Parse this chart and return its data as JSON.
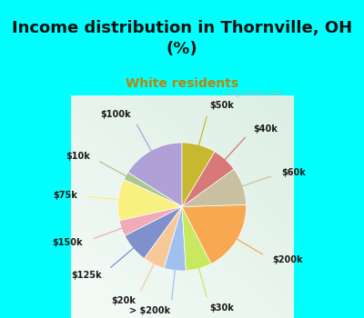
{
  "title": "Income distribution in Thornville, OH\n(%)",
  "subtitle": "White residents",
  "title_color": "#111111",
  "subtitle_color": "#b8860b",
  "background_fig": "#00ffff",
  "background_chart": "#d8f0e8",
  "labels": [
    "$100k",
    "$10k",
    "$75k",
    "$150k",
    "$125k",
    "$20k",
    "> $200k",
    "$30k",
    "$200k",
    "$60k",
    "$40k",
    "$50k"
  ],
  "values": [
    16.0,
    2.0,
    10.5,
    4.0,
    7.5,
    5.5,
    5.5,
    6.5,
    18.0,
    9.5,
    6.5,
    8.5
  ],
  "colors": [
    "#b0a0d8",
    "#a8c890",
    "#f8f080",
    "#f0aab8",
    "#8090cc",
    "#f8c898",
    "#a0c0f0",
    "#c8e860",
    "#f8a850",
    "#c8c0a0",
    "#d87878",
    "#c8b830"
  ],
  "watermark": "City-Data.com",
  "startangle": 90
}
